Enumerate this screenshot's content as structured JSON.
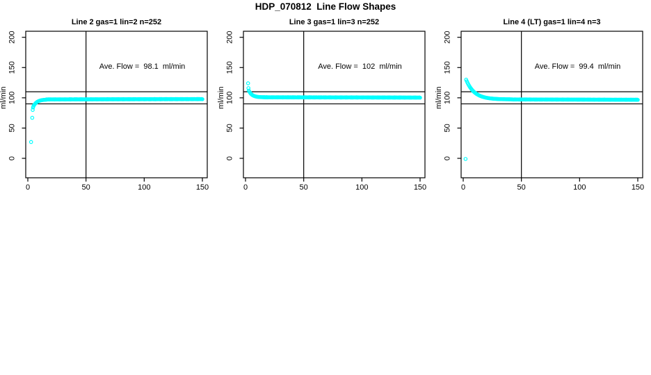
{
  "figure": {
    "title": "HDP_070812  Line Flow Shapes"
  },
  "chart_data": [
    {
      "type": "scatter",
      "title": "Line 2 gas=1 lin=2 n=252",
      "gas": 1,
      "lin": 2,
      "n": 252,
      "annotation": "Ave. Flow =  98.1  ml/min",
      "ave_flow_ml_min": 98.1,
      "xlabel": "",
      "ylabel": "ml/min",
      "xlim": [
        -2,
        154
      ],
      "ylim": [
        -32,
        210
      ],
      "x_ticks": [
        0,
        50,
        100,
        150
      ],
      "y_ticks": [
        0,
        50,
        100,
        150,
        200
      ],
      "ref_lines_y": [
        110,
        90
      ],
      "ref_line_x": 50,
      "grid": false,
      "marker": "open-circle",
      "marker_color": "#00FFFF",
      "segments": [
        {
          "type": "points",
          "pts": [
            [
              2.8,
              27
            ],
            [
              3.8,
              67
            ],
            [
              4.2,
              80
            ],
            [
              4.5,
              84
            ]
          ]
        },
        {
          "type": "exp",
          "x0": 4.8,
          "x1": 16,
          "n": 22,
          "y_start": 86,
          "y_inf": 97.3,
          "tau": 3.2
        },
        {
          "type": "band",
          "x0": 16,
          "x1": 150,
          "n": 210,
          "y0": 97.4,
          "y1": 97.9,
          "jitter": 0.5
        }
      ]
    },
    {
      "type": "scatter",
      "title": "Line 3 gas=1 lin=3 n=252",
      "gas": 1,
      "lin": 3,
      "n": 252,
      "annotation": "Ave. Flow =  102  ml/min",
      "ave_flow_ml_min": 102,
      "xlabel": "",
      "ylabel": "ml/min",
      "xlim": [
        -2,
        154
      ],
      "ylim": [
        -32,
        210
      ],
      "x_ticks": [
        0,
        50,
        100,
        150
      ],
      "y_ticks": [
        0,
        50,
        100,
        150,
        200
      ],
      "ref_lines_y": [
        110,
        90
      ],
      "ref_line_x": 50,
      "grid": false,
      "marker": "open-circle",
      "marker_color": "#00FFFF",
      "segments": [
        {
          "type": "points",
          "pts": [
            [
              2.2,
              124
            ],
            [
              2.5,
              116
            ]
          ]
        },
        {
          "type": "exp",
          "x0": 2.8,
          "x1": 16,
          "n": 24,
          "y_start": 112,
          "y_inf": 100.9,
          "tau": 2.8
        },
        {
          "type": "band",
          "x0": 16,
          "x1": 150,
          "n": 210,
          "y0": 100.9,
          "y1": 100.4,
          "jitter": 0.5
        }
      ]
    },
    {
      "type": "scatter",
      "title": "Line 4 (LT) gas=1 lin=4 n=3",
      "gas": 1,
      "lin": 4,
      "n": 3,
      "annotation": "Ave. Flow =  99.4  ml/min",
      "ave_flow_ml_min": 99.4,
      "xlabel": "",
      "ylabel": "ml/min",
      "xlim": [
        -2,
        154
      ],
      "ylim": [
        -32,
        210
      ],
      "x_ticks": [
        0,
        50,
        100,
        150
      ],
      "y_ticks": [
        0,
        50,
        100,
        150,
        200
      ],
      "ref_lines_y": [
        110,
        90
      ],
      "ref_line_x": 50,
      "grid": false,
      "marker": "open-circle",
      "marker_color": "#00FFFF",
      "segments": [
        {
          "type": "points",
          "pts": [
            [
              2,
              -1
            ]
          ]
        },
        {
          "type": "exp",
          "x0": 2.5,
          "x1": 42,
          "n": 68,
          "y_start": 130,
          "y_inf": 97.4,
          "tau": 7
        },
        {
          "type": "band",
          "x0": 42,
          "x1": 150,
          "n": 170,
          "y0": 97.3,
          "y1": 96.8,
          "jitter": 0.4
        }
      ]
    }
  ]
}
